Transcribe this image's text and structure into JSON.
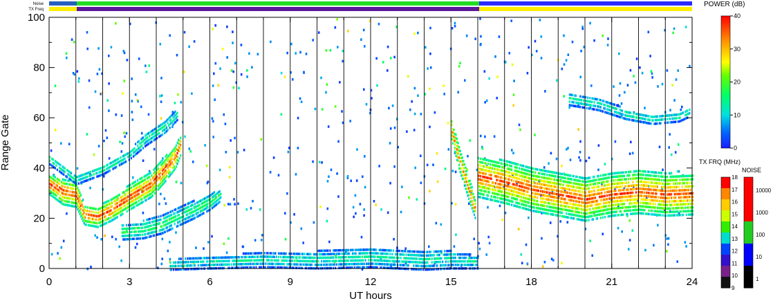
{
  "chart_data": {
    "type": "heatmap",
    "title": "",
    "xlabel": "UT hours",
    "ylabel": "Range Gate",
    "xlim": [
      0,
      24
    ],
    "ylim": [
      0,
      100
    ],
    "x_ticks": [
      "0",
      "3",
      "6",
      "9",
      "12",
      "15",
      "18",
      "21",
      "24"
    ],
    "y_ticks": [
      "0",
      "20",
      "40",
      "60",
      "80",
      "100"
    ],
    "grid": "vertical lines at every UT hour",
    "scan_hours": [
      1,
      2,
      3,
      4,
      5,
      6,
      7,
      8,
      9,
      10,
      11,
      12,
      13,
      14,
      15,
      16,
      17,
      18,
      19,
      20,
      21,
      22,
      23
    ],
    "top_bars": {
      "noise_label": "Noise",
      "txfreq_label": "TX Freq"
    },
    "power_colorbar": {
      "label": "POWER (dB)",
      "range": [
        0,
        40
      ],
      "ticks": [
        "0",
        "10",
        "20",
        "30",
        "40"
      ]
    },
    "txfreq_colorbar": {
      "label": "TX FRQ (MHz)",
      "ticks": [
        "18",
        "17",
        "16",
        "15",
        "14",
        "13",
        "12",
        "11",
        "10",
        "9"
      ]
    },
    "noise_colorbar": {
      "label": "NOISE",
      "ticks": [
        "10000",
        "1000",
        "100",
        "10",
        "1"
      ]
    },
    "bands": [
      {
        "name": "day-scatter-lower",
        "power_db": 34,
        "points": [
          [
            0,
            34
          ],
          [
            0.5,
            31
          ],
          [
            1,
            30
          ],
          [
            1.3,
            22
          ],
          [
            1.8,
            21
          ],
          [
            2.3,
            24
          ],
          [
            3,
            29
          ],
          [
            3.8,
            34
          ],
          [
            4.3,
            40
          ],
          [
            4.7,
            45
          ],
          [
            4.9,
            50
          ]
        ],
        "width": [
          8,
          10,
          10,
          8,
          8,
          9,
          10,
          10,
          10,
          9,
          8
        ]
      },
      {
        "name": "day-scatter-upper",
        "power_db": 14,
        "points": [
          [
            0,
            44
          ],
          [
            1,
            36
          ],
          [
            2,
            40
          ],
          [
            3,
            46
          ],
          [
            3.6,
            52
          ],
          [
            4.3,
            57
          ],
          [
            4.8,
            62
          ]
        ],
        "width": [
          4,
          4,
          4,
          4,
          5,
          5,
          4
        ]
      },
      {
        "name": "second-hop-ionospheric",
        "power_db": 16,
        "points": [
          [
            2.7,
            15
          ],
          [
            3.5,
            16
          ],
          [
            4.2,
            18
          ],
          [
            4.8,
            21
          ],
          [
            5.4,
            24
          ],
          [
            6,
            27
          ],
          [
            6.4,
            30
          ]
        ],
        "width": [
          6,
          7,
          7,
          7,
          7,
          6,
          5
        ]
      },
      {
        "name": "ground-scatter-low-gates",
        "power_db": 12,
        "points": [
          [
            4.5,
            2
          ],
          [
            6,
            3
          ],
          [
            8,
            4
          ],
          [
            10,
            4
          ],
          [
            12,
            5
          ],
          [
            14,
            4
          ],
          [
            15,
            4
          ],
          [
            16,
            3
          ]
        ],
        "width": [
          4,
          5,
          6,
          7,
          8,
          8,
          7,
          5
        ]
      },
      {
        "name": "dusk-descending-trace",
        "power_db": 32,
        "points": [
          [
            15,
            56
          ],
          [
            15.3,
            44
          ],
          [
            15.6,
            34
          ],
          [
            15.9,
            24
          ]
        ],
        "width": [
          8,
          9,
          9,
          8
        ]
      },
      {
        "name": "night-scatter",
        "power_db": 33,
        "points": [
          [
            16,
            37
          ],
          [
            17,
            35
          ],
          [
            18,
            32
          ],
          [
            19,
            30
          ],
          [
            20,
            28
          ],
          [
            21,
            30
          ],
          [
            22,
            31
          ],
          [
            23,
            30
          ],
          [
            24,
            30
          ]
        ],
        "width": [
          16,
          17,
          17,
          17,
          17,
          17,
          17,
          17,
          16
        ]
      },
      {
        "name": "night-upper-echo",
        "power_db": 13,
        "points": [
          [
            19.4,
            68
          ],
          [
            20.5,
            66
          ],
          [
            21.5,
            62
          ],
          [
            22.5,
            60
          ],
          [
            23.5,
            61
          ],
          [
            23.9,
            63
          ]
        ],
        "width": [
          5,
          5,
          4,
          4,
          4,
          4
        ]
      }
    ]
  }
}
